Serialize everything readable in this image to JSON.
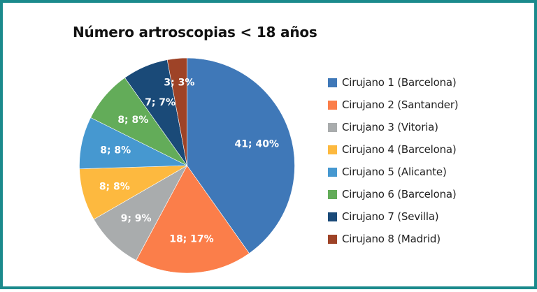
{
  "chart_data": {
    "type": "pie",
    "title": "Número artroscopias < 18 años",
    "categories": [
      "Cirujano 1 (Barcelona)",
      "Cirujano 2 (Santander)",
      "Cirujano 3 (Vitoria)",
      "Cirujano 4 (Barcelona)",
      "Cirujano 5 (Alicante)",
      "Cirujano 6 (Barcelona)",
      "Cirujano 7 (Sevilla)",
      "Cirujano 8 (Madrid)"
    ],
    "values": [
      41,
      18,
      9,
      8,
      8,
      8,
      7,
      3
    ],
    "percentages": [
      40,
      17,
      9,
      8,
      8,
      8,
      7,
      3
    ],
    "data_labels": [
      "41; 40%",
      "18; 17%",
      "9; 9%",
      "8; 8%",
      "8; 8%",
      "8; 8%",
      "7; 7%",
      "3; 3%"
    ],
    "colors": [
      "#3f78b8",
      "#fb7e4a",
      "#a9acad",
      "#fdb93f",
      "#4698d0",
      "#63ac59",
      "#1a4a78",
      "#9e4327"
    ],
    "legend_position": "right",
    "start_angle": "top, clockwise"
  },
  "frame": {
    "border_color": "#1b8a8c"
  }
}
